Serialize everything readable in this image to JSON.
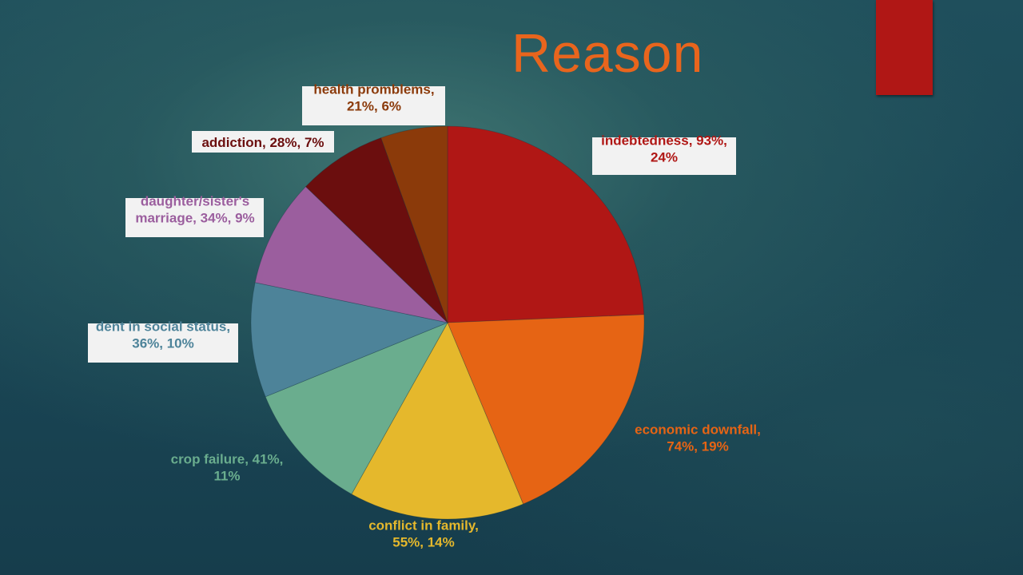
{
  "slide": {
    "title": "Reason",
    "accent_color": "#b01715"
  },
  "chart_data": {
    "type": "pie",
    "title": "Reason",
    "slices": [
      {
        "category": "indebtedness",
        "value": 93,
        "percent": 24,
        "label_lines": [
          "indebtedness, 93%,",
          "24%"
        ],
        "color": "#b01715",
        "label_color": "#b01715",
        "label_boxed": true
      },
      {
        "category": "economic downfall",
        "value": 74,
        "percent": 19,
        "label_lines": [
          "economic downfall,",
          "74%, 19%"
        ],
        "color": "#e66414",
        "label_color": "#e66414",
        "label_boxed": false
      },
      {
        "category": "conflict in family",
        "value": 55,
        "percent": 14,
        "label_lines": [
          "conflict in family,",
          "55%, 14%"
        ],
        "color": "#e5b82c",
        "label_color": "#e5b82c",
        "label_boxed": false
      },
      {
        "category": "crop failure",
        "value": 41,
        "percent": 11,
        "label_lines": [
          "crop failure, 41%,",
          "11%"
        ],
        "color": "#6aad8e",
        "label_color": "#6aad8e",
        "label_boxed": false
      },
      {
        "category": "dent in social status",
        "value": 36,
        "percent": 10,
        "label_lines": [
          "dent in social status,",
          "36%, 10%"
        ],
        "color": "#4d8399",
        "label_color": "#4d8399",
        "label_boxed": true
      },
      {
        "category": "daughter/sister's marriage",
        "value": 34,
        "percent": 9,
        "label_lines": [
          "daughter/sister's",
          "marriage, 34%, 9%"
        ],
        "color": "#9b5e9e",
        "label_color": "#9b5e9e",
        "label_boxed": true
      },
      {
        "category": "addiction",
        "value": 28,
        "percent": 7,
        "label_lines": [
          "addiction, 28%, 7%"
        ],
        "color": "#6b0e0e",
        "label_color": "#6b0e0e",
        "label_boxed": true
      },
      {
        "category": "health promblems",
        "value": 21,
        "percent": 6,
        "label_lines": [
          "health promblems,",
          "21%, 6%"
        ],
        "color": "#8b3a0a",
        "label_color": "#8b3a0a",
        "label_boxed": true
      }
    ],
    "start": "12 o'clock",
    "direction": "clockwise",
    "legend": "none"
  }
}
